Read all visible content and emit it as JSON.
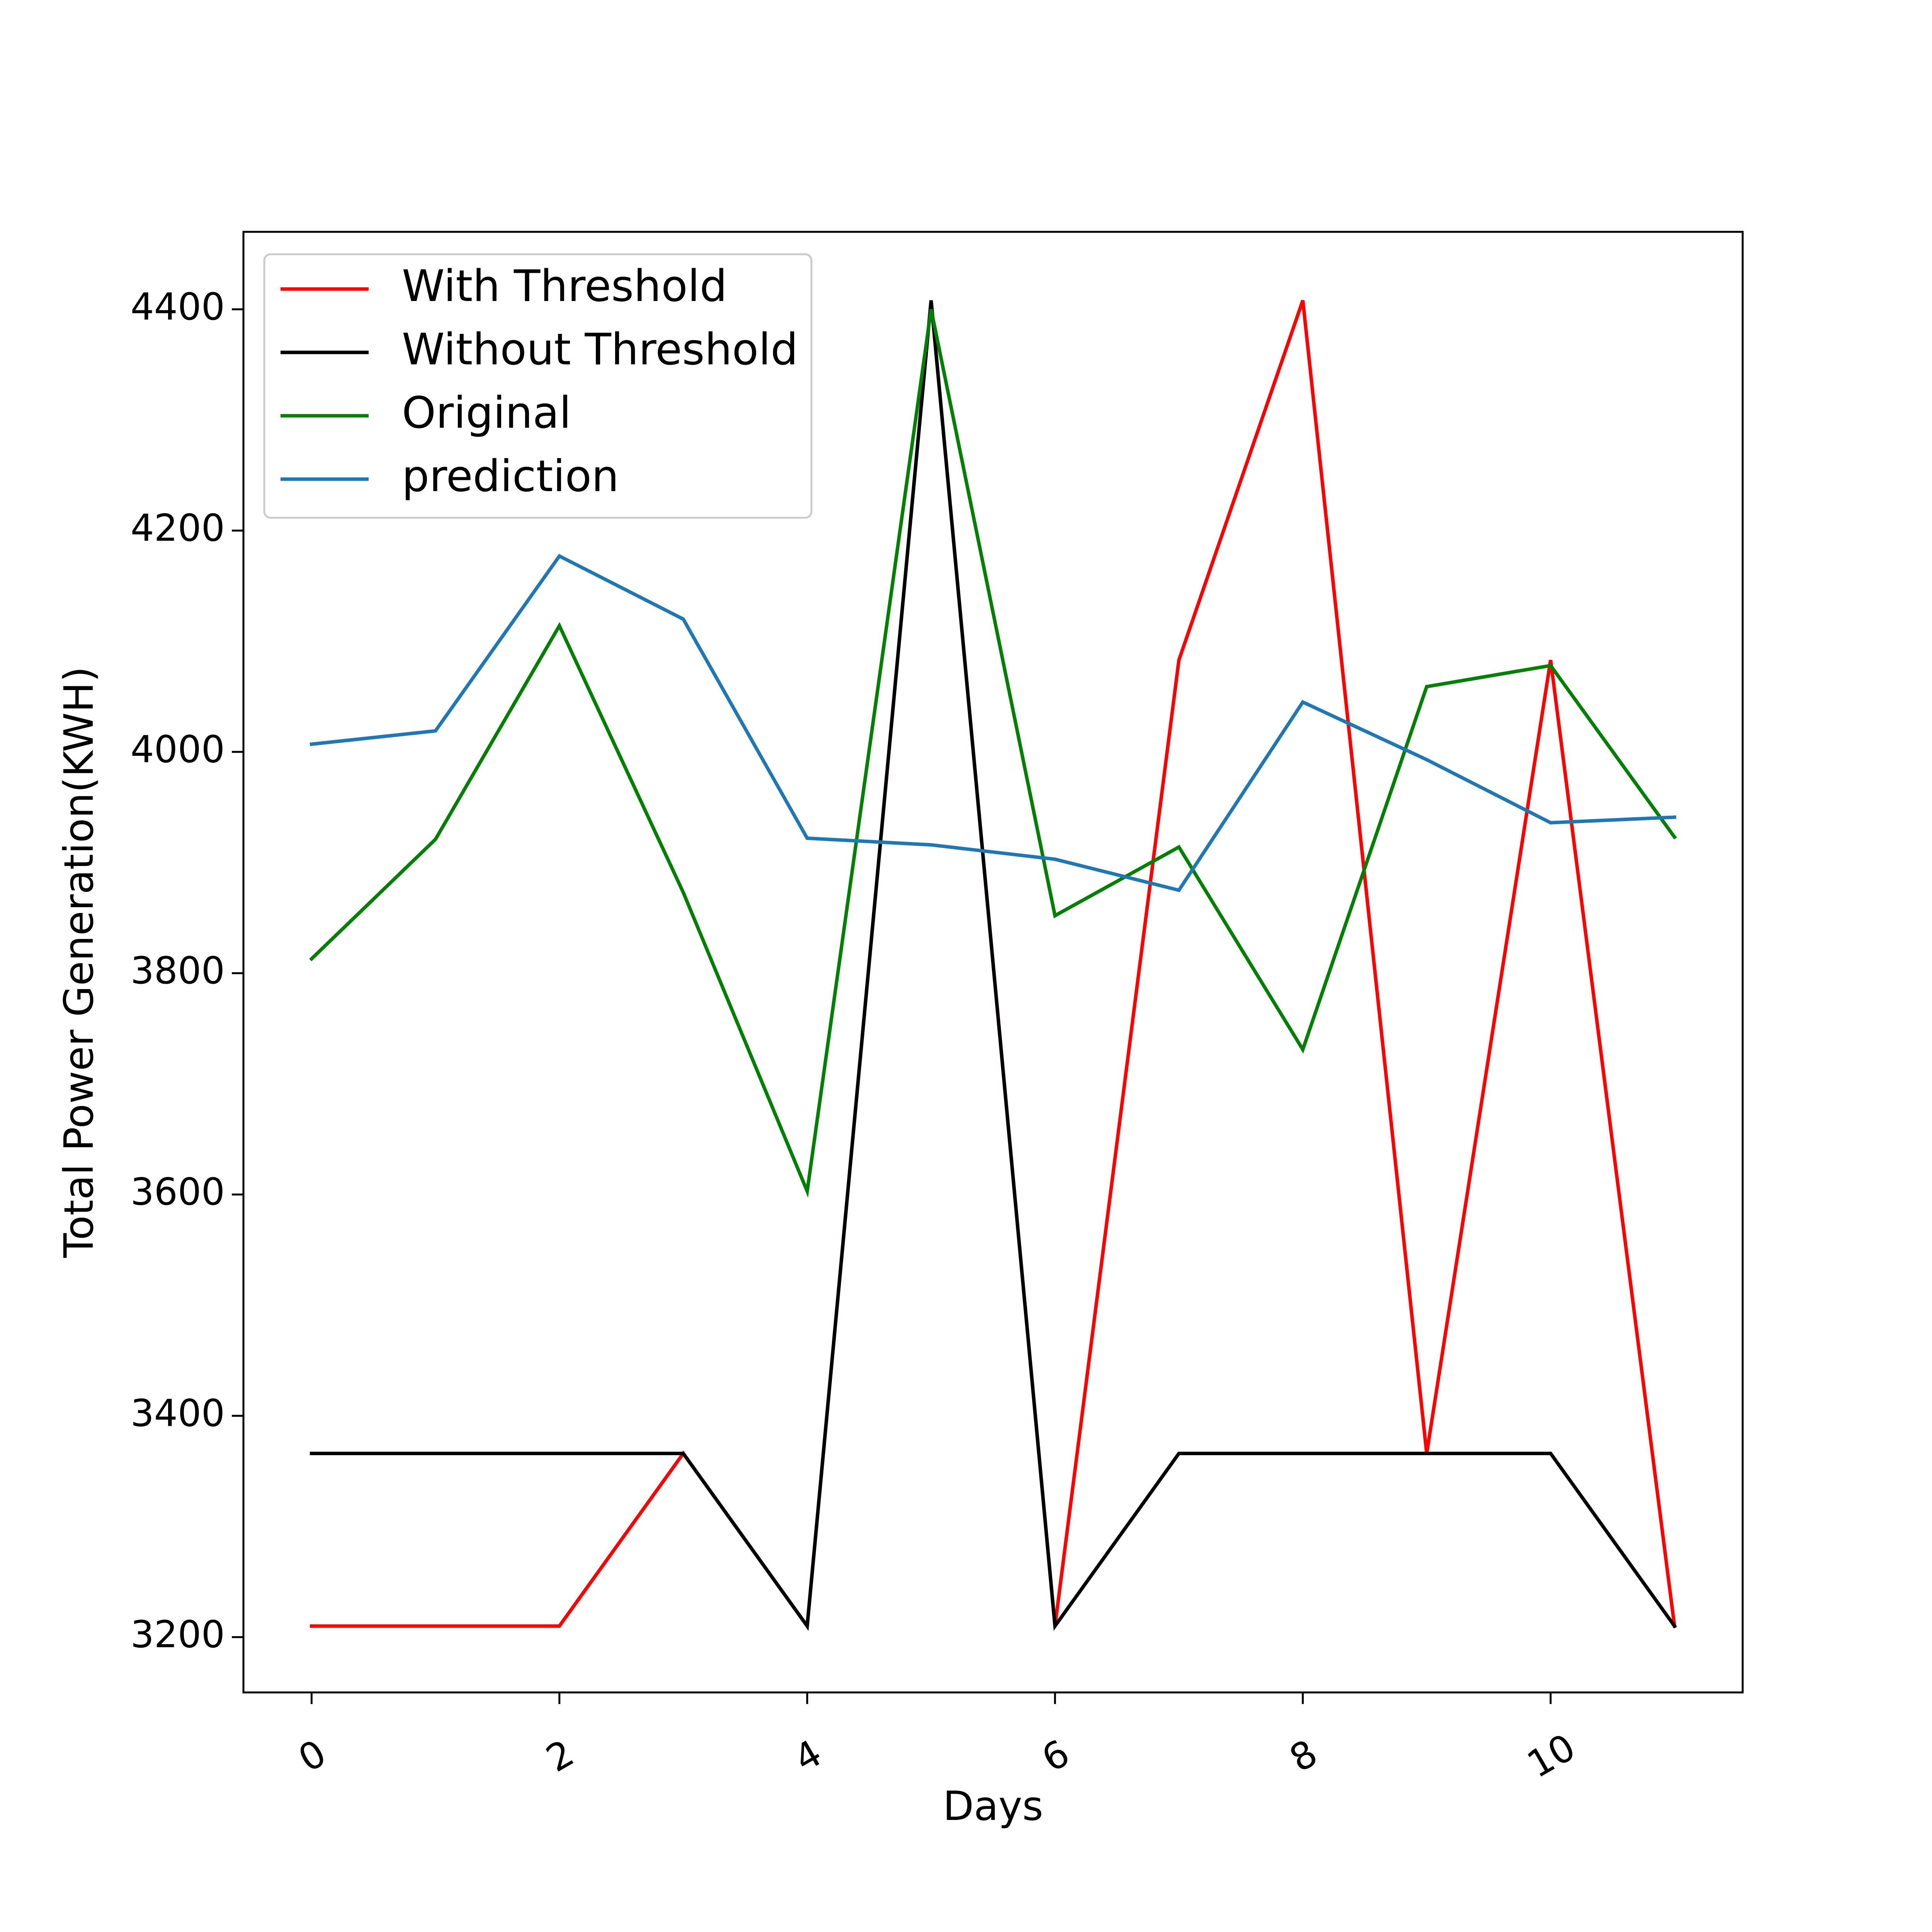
{
  "chart_data": {
    "type": "line",
    "title": "",
    "xlabel": "Days",
    "ylabel": "Total Power Generation(KWH)",
    "x": [
      0,
      1,
      2,
      3,
      4,
      5,
      6,
      7,
      8,
      9,
      10,
      11
    ],
    "xlim": [
      -0.55,
      11.55
    ],
    "ylim": [
      3150,
      4470
    ],
    "xticks": [
      0,
      2,
      4,
      6,
      8,
      10
    ],
    "yticks": [
      3200,
      3400,
      3600,
      3800,
      4000,
      4200,
      4400
    ],
    "grid": false,
    "legend_position": "top-left",
    "series": [
      {
        "name": "With Threshold",
        "color": "#ff0000",
        "values": [
          3210,
          3210,
          3210,
          3366,
          3210,
          4408,
          3210,
          4083,
          4408,
          3366,
          4083,
          3210
        ]
      },
      {
        "name": "Without Threshold",
        "color": "#000000",
        "values": [
          3366,
          3366,
          3366,
          3366,
          3210,
          4408,
          3210,
          3366,
          3366,
          3366,
          3366,
          3210
        ]
      },
      {
        "name": "Original",
        "color": "#008000",
        "values": [
          3813,
          3921,
          4114,
          3873,
          3603,
          4400,
          3852,
          3914,
          3731,
          4059,
          4078,
          3923
        ]
      },
      {
        "name": "prediction",
        "color": "#1f77b4",
        "values": [
          4007,
          4019,
          4177,
          4120,
          3922,
          3916,
          3903,
          3875,
          4045,
          3993,
          3936,
          3941
        ]
      }
    ]
  }
}
